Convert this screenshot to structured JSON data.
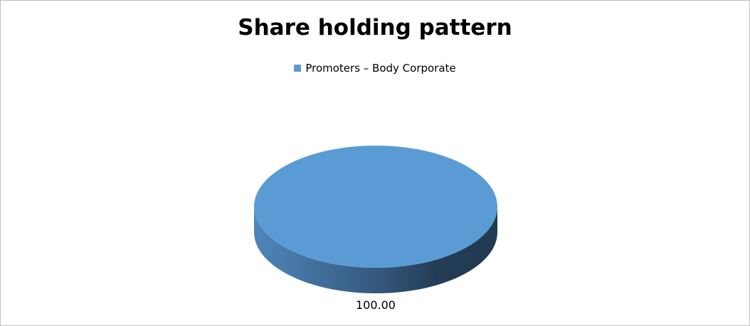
{
  "chart_data": {
    "type": "pie",
    "style": "3d",
    "title": "Share holding pattern",
    "legend_position": "top",
    "slices": [
      {
        "name": "Promoters – Body Corporate",
        "value": 100.0,
        "label": "100.00",
        "color": "#5b9bd5"
      }
    ]
  }
}
